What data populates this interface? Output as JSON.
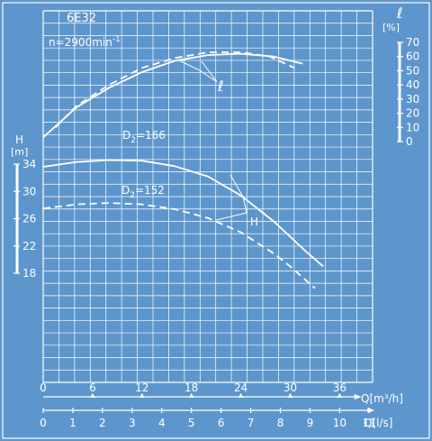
{
  "colors": {
    "background": "#5d96cc",
    "ink": "#ffffff"
  },
  "chart_data": {
    "type": "line",
    "pump": "6E32",
    "speed": "n=2900min",
    "speed_exp": "-1",
    "x_label_flow_m3h": "Q[m³/h]",
    "x_label_flow_ls": "Q[l/s]",
    "y_label_head_symbol": "H",
    "y_label_head_unit": "[m]",
    "y_label_eff_symbol": "ℓ",
    "y_label_eff_unit": "[%]",
    "x_ticks_m3h": [
      "0",
      "6",
      "12",
      "18",
      "24",
      "30",
      "36"
    ],
    "x_ticks_ls": [
      "0",
      "1",
      "2",
      "3",
      "4",
      "5",
      "6",
      "7",
      "8",
      "9",
      "10",
      "11"
    ],
    "y_ticks_head": [
      "34",
      "30",
      "26",
      "22",
      "18"
    ],
    "y_ticks_eff": [
      "70",
      "60",
      "50",
      "40",
      "30",
      "20",
      "10",
      "0"
    ],
    "x_range_m3h": [
      0,
      40
    ],
    "head_range": [
      18,
      34
    ],
    "eff_range": [
      0,
      70
    ],
    "grid": true,
    "annotations": {
      "d166": "D₂=166",
      "d152": "D₂=152",
      "head_label": "H",
      "eff_label": "ℓ"
    },
    "series": [
      {
        "key": "head_d166",
        "style": "solid",
        "x": [
          0,
          4,
          8,
          12,
          16,
          20,
          24,
          28,
          32,
          34
        ],
        "y": [
          33.6,
          34.3,
          34.6,
          34.5,
          33.7,
          32.2,
          29.4,
          25.6,
          21.1,
          19.0
        ]
      },
      {
        "key": "head_d152",
        "style": "dashed",
        "x": [
          0,
          4,
          8,
          12,
          16,
          20,
          24,
          28,
          30,
          33
        ],
        "y": [
          27.5,
          28.1,
          28.3,
          28.1,
          27.4,
          26.1,
          24.0,
          20.9,
          19.0,
          15.8
        ]
      },
      {
        "key": "eff_d166",
        "style": "solid",
        "x": [
          0,
          4,
          8,
          12,
          16,
          20,
          24,
          28,
          31.5
        ],
        "y": [
          3,
          24,
          38,
          49,
          57,
          61,
          62,
          60,
          55
        ]
      },
      {
        "key": "eff_d152",
        "style": "dashed",
        "x": [
          1.5,
          4,
          8,
          12,
          16,
          20,
          24,
          27.5,
          30.5
        ],
        "y": [
          10,
          25,
          40,
          52,
          59,
          63,
          63,
          60,
          52
        ]
      }
    ]
  }
}
